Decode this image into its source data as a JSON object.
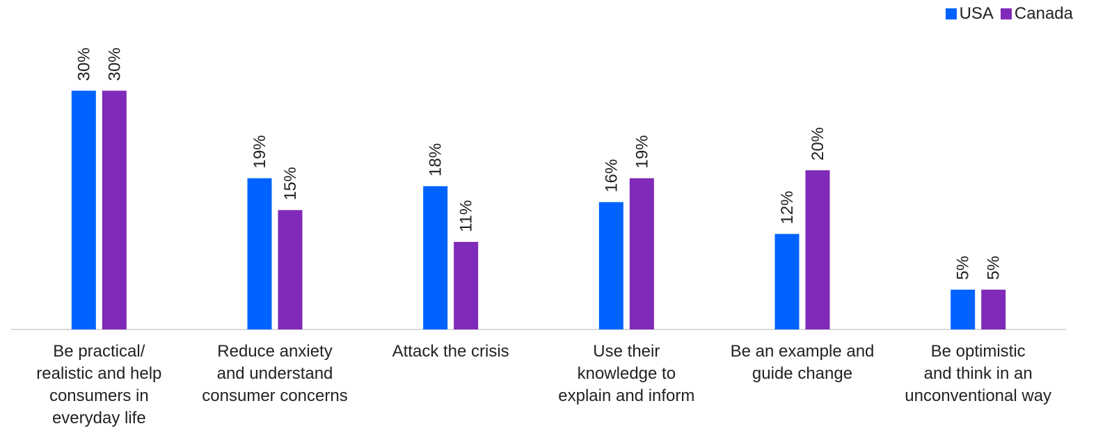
{
  "colors": {
    "USA": "#0063FF",
    "Canada": "#7F2AB8",
    "axis": "#D9D9D9",
    "text": "#222222"
  },
  "chart_data": {
    "type": "bar",
    "title": "",
    "xlabel": "",
    "ylabel": "",
    "ylim": [
      0,
      35
    ],
    "grid": false,
    "legend": "top-right",
    "categories": [
      "Be practical/\nrealistic and help\nconsumers in\neveryday life",
      "Reduce anxiety\nand understand\nconsumer concerns",
      "Attack the crisis",
      "Use their\nknowledge to\nexplain and inform",
      "Be an example and\nguide change",
      "Be optimistic\nand think in an\nunconventional way"
    ],
    "series": [
      {
        "name": "USA",
        "values": [
          30,
          19,
          18,
          16,
          12,
          5
        ],
        "labels": [
          "30%",
          "19%",
          "18%",
          "16%",
          "12%",
          "5%"
        ]
      },
      {
        "name": "Canada",
        "values": [
          30,
          15,
          11,
          19,
          20,
          5
        ],
        "labels": [
          "30%",
          "15%",
          "11%",
          "19%",
          "20%",
          "5%"
        ]
      }
    ]
  }
}
